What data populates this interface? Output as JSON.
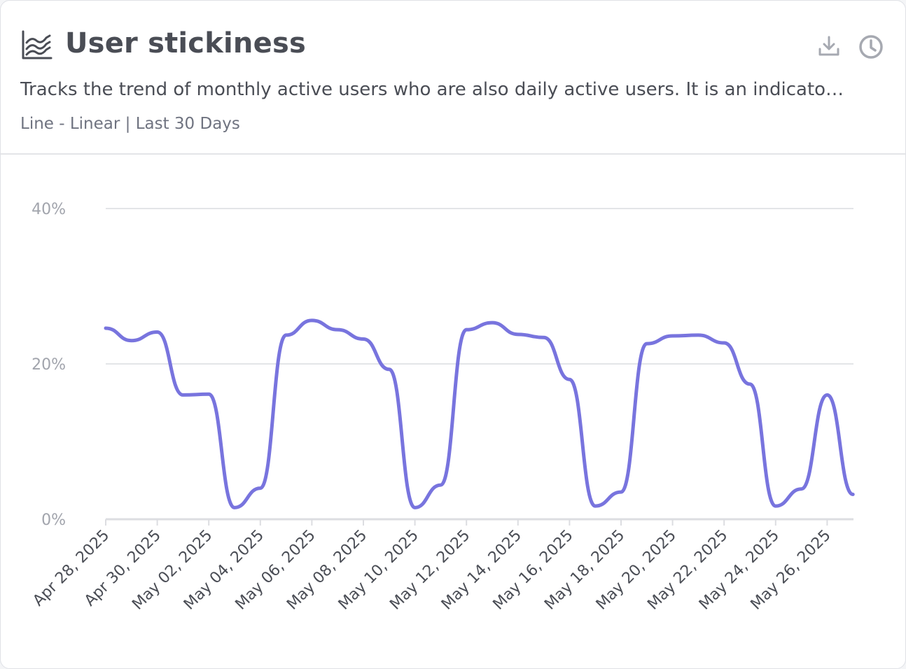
{
  "header": {
    "title": "User stickiness",
    "description": "Tracks the trend of monthly active users who are also daily active users. It is an indicator...",
    "meta": "Line - Linear | Last 30 Days",
    "title_icon": "area-chart-icon",
    "actions": [
      "download-icon",
      "history-clock-icon"
    ]
  },
  "colors": {
    "line": "#7874de",
    "grid": "#e3e5e8",
    "axis": "#dcdde1",
    "title": "#4a4d55",
    "muted": "#a1a4ac",
    "icon": "#a6a9b1"
  },
  "chart_data": {
    "type": "line",
    "xlabel": "",
    "ylabel": "",
    "ylim": [
      0,
      40
    ],
    "ytick_labels": [
      "0%",
      "20%",
      "40%"
    ],
    "y_unit": "%",
    "grid": true,
    "x": [
      "Apr 28, 2025",
      "Apr 29, 2025",
      "Apr 30, 2025",
      "May 01, 2025",
      "May 02, 2025",
      "May 03, 2025",
      "May 04, 2025",
      "May 05, 2025",
      "May 06, 2025",
      "May 07, 2025",
      "May 08, 2025",
      "May 09, 2025",
      "May 10, 2025",
      "May 11, 2025",
      "May 12, 2025",
      "May 13, 2025",
      "May 14, 2025",
      "May 15, 2025",
      "May 16, 2025",
      "May 17, 2025",
      "May 18, 2025",
      "May 19, 2025",
      "May 20, 2025",
      "May 21, 2025",
      "May 22, 2025",
      "May 23, 2025",
      "May 24, 2025",
      "May 25, 2025",
      "May 26, 2025",
      "May 27, 2025"
    ],
    "xtick_labels": [
      "Apr 28, 2025",
      "Apr 30, 2025",
      "May 02, 2025",
      "May 04, 2025",
      "May 06, 2025",
      "May 08, 2025",
      "May 10, 2025",
      "May 12, 2025",
      "May 14, 2025",
      "May 16, 2025",
      "May 18, 2025",
      "May 20, 2025",
      "May 22, 2025",
      "May 24, 2025",
      "May 26, 2025"
    ],
    "series": [
      {
        "values": [
          24.6,
          23.0,
          24.1,
          16.0,
          16.1,
          1.5,
          4.0,
          23.7,
          25.6,
          24.4,
          23.2,
          19.3,
          1.5,
          4.4,
          24.4,
          25.3,
          23.8,
          23.4,
          18.0,
          1.7,
          3.5,
          22.6,
          23.6,
          23.7,
          22.7,
          17.4,
          1.7,
          3.9,
          16.0,
          3.2
        ]
      }
    ]
  }
}
